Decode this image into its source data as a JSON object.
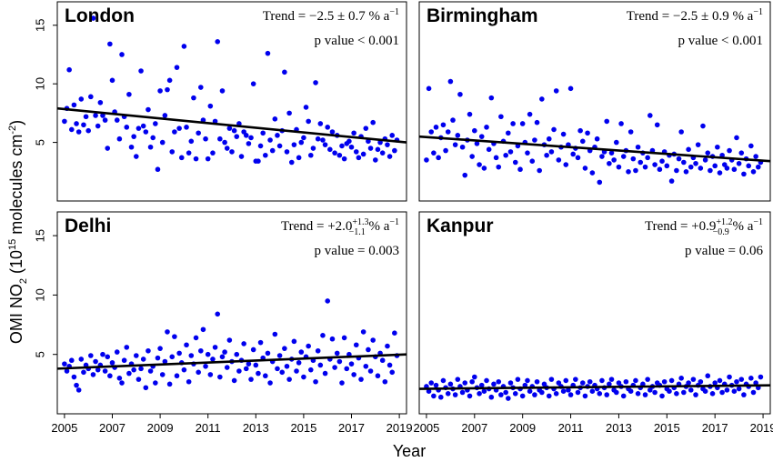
{
  "figure": {
    "xlabel": "Year",
    "ylabel_main": "OMI NO",
    "ylabel_sub": "2",
    "ylabel_open": " (10",
    "ylabel_exp": "15",
    "ylabel_unit": " molecules cm",
    "ylabel_unit_exp": "-2",
    "ylabel_close": ")",
    "x_tick_labels": [
      "2005",
      "2007",
      "2009",
      "2011",
      "2013",
      "2015",
      "2017",
      "2019"
    ],
    "y_tick_labels": [
      "5",
      "10",
      "15"
    ],
    "point_color": "#0000ee",
    "trend_color": "#000000"
  },
  "chart_data": [
    {
      "type": "scatter",
      "title": "London",
      "trend_label": "Trend = ",
      "trend_value": "−2.5 ± 0.7 % a",
      "trend_sup": "−1",
      "trend_sub": "",
      "unit": "",
      "unit_sup": "",
      "pvalue": "p value < 0.001",
      "xlim": [
        2004.7,
        2019.3
      ],
      "ylim": [
        0,
        17
      ],
      "trend": [
        [
          2004.7,
          7.9
        ],
        [
          2019.3,
          5.0
        ]
      ],
      "x": [
        2005.0,
        2005.1,
        2005.2,
        2005.3,
        2005.4,
        2005.5,
        2005.6,
        2005.7,
        2005.8,
        2005.9,
        2006.0,
        2006.1,
        2006.2,
        2006.3,
        2006.4,
        2006.5,
        2006.6,
        2006.7,
        2006.8,
        2006.9,
        2007.0,
        2007.1,
        2007.2,
        2007.3,
        2007.4,
        2007.5,
        2007.6,
        2007.7,
        2007.8,
        2007.9,
        2008.0,
        2008.1,
        2008.2,
        2008.3,
        2008.4,
        2008.5,
        2008.6,
        2008.7,
        2008.8,
        2008.9,
        2009.0,
        2009.1,
        2009.2,
        2009.3,
        2009.4,
        2009.5,
        2009.6,
        2009.7,
        2009.8,
        2009.9,
        2010.0,
        2010.1,
        2010.2,
        2010.3,
        2010.4,
        2010.5,
        2010.6,
        2010.7,
        2010.8,
        2010.9,
        2011.0,
        2011.1,
        2011.2,
        2011.3,
        2011.4,
        2011.5,
        2011.6,
        2011.7,
        2011.8,
        2011.9,
        2012.0,
        2012.1,
        2012.2,
        2012.3,
        2012.4,
        2012.5,
        2012.6,
        2012.7,
        2012.8,
        2012.9,
        2013.0,
        2013.1,
        2013.2,
        2013.3,
        2013.4,
        2013.5,
        2013.6,
        2013.7,
        2013.8,
        2013.9,
        2014.0,
        2014.1,
        2014.2,
        2014.3,
        2014.4,
        2014.5,
        2014.6,
        2014.7,
        2014.8,
        2014.9,
        2015.0,
        2015.1,
        2015.2,
        2015.3,
        2015.4,
        2015.5,
        2015.6,
        2015.7,
        2015.8,
        2015.9,
        2016.0,
        2016.1,
        2016.2,
        2016.3,
        2016.4,
        2016.5,
        2016.6,
        2016.7,
        2016.8,
        2016.9,
        2017.0,
        2017.1,
        2017.2,
        2017.3,
        2017.4,
        2017.5,
        2017.6,
        2017.7,
        2017.8,
        2017.9,
        2018.0,
        2018.1,
        2018.2,
        2018.3,
        2018.4,
        2018.5,
        2018.6,
        2018.7,
        2018.8,
        2018.9
      ],
      "y": [
        6.8,
        7.9,
        11.2,
        6.1,
        8.2,
        6.6,
        5.9,
        8.7,
        6.5,
        7.2,
        6.0,
        8.9,
        15.6,
        7.3,
        6.4,
        8.4,
        7.3,
        6.9,
        4.5,
        13.4,
        10.3,
        7.6,
        6.9,
        5.3,
        12.5,
        7.2,
        6.3,
        9.1,
        4.6,
        5.5,
        3.8,
        6.2,
        11.1,
        6.4,
        5.9,
        7.8,
        4.6,
        5.4,
        6.6,
        2.7,
        9.4,
        5.0,
        7.3,
        9.5,
        10.3,
        4.2,
        5.9,
        11.4,
        6.2,
        3.7,
        13.2,
        6.3,
        4.1,
        5.1,
        8.8,
        3.6,
        5.8,
        9.7,
        6.9,
        5.3,
        3.6,
        8.1,
        4.1,
        6.8,
        13.6,
        5.3,
        9.4,
        5.0,
        4.5,
        6.2,
        4.2,
        6.0,
        5.5,
        6.6,
        3.8,
        5.9,
        5.6,
        4.9,
        5.4,
        10.0,
        3.4,
        3.4,
        4.7,
        5.8,
        3.9,
        12.6,
        5.2,
        4.3,
        7.0,
        5.6,
        4.7,
        6.0,
        11.0,
        4.2,
        7.5,
        3.3,
        4.8,
        6.1,
        3.7,
        5.0,
        5.4,
        8.0,
        6.8,
        3.9,
        4.5,
        10.1,
        5.3,
        6.6,
        5.2,
        4.8,
        6.3,
        4.4,
        5.9,
        4.1,
        5.6,
        3.9,
        4.7,
        3.6,
        4.9,
        5.1,
        4.6,
        5.8,
        4.2,
        3.7,
        5.5,
        4.0,
        6.2,
        5.1,
        4.5,
        6.7,
        3.5,
        4.4,
        5.0,
        4.1,
        5.3,
        4.8,
        3.8,
        5.6,
        4.3,
        5.2
      ]
    },
    {
      "type": "scatter",
      "title": "Birmingham",
      "trend_label": "Trend = ",
      "trend_value": "−2.5 ± 0.9 % a",
      "trend_sup": "−1",
      "trend_sub": "",
      "unit": "",
      "unit_sup": "",
      "pvalue": "p value < 0.001",
      "xlim": [
        2004.7,
        2019.3
      ],
      "ylim": [
        0,
        17
      ],
      "trend": [
        [
          2004.7,
          5.5
        ],
        [
          2019.3,
          3.4
        ]
      ],
      "x": [
        2005.0,
        2005.1,
        2005.2,
        2005.3,
        2005.4,
        2005.5,
        2005.6,
        2005.7,
        2005.8,
        2005.9,
        2006.0,
        2006.1,
        2006.2,
        2006.3,
        2006.4,
        2006.5,
        2006.6,
        2006.7,
        2006.8,
        2006.9,
        2007.0,
        2007.1,
        2007.2,
        2007.3,
        2007.4,
        2007.5,
        2007.6,
        2007.7,
        2007.8,
        2007.9,
        2008.0,
        2008.1,
        2008.2,
        2008.3,
        2008.4,
        2008.5,
        2008.6,
        2008.7,
        2008.8,
        2008.9,
        2009.0,
        2009.1,
        2009.2,
        2009.3,
        2009.4,
        2009.5,
        2009.6,
        2009.7,
        2009.8,
        2009.9,
        2010.0,
        2010.1,
        2010.2,
        2010.3,
        2010.4,
        2010.5,
        2010.6,
        2010.7,
        2010.8,
        2010.9,
        2011.0,
        2011.1,
        2011.2,
        2011.3,
        2011.4,
        2011.5,
        2011.6,
        2011.7,
        2011.8,
        2011.9,
        2012.0,
        2012.1,
        2012.2,
        2012.3,
        2012.4,
        2012.5,
        2012.6,
        2012.7,
        2012.8,
        2012.9,
        2013.0,
        2013.1,
        2013.2,
        2013.3,
        2013.4,
        2013.5,
        2013.6,
        2013.7,
        2013.8,
        2013.9,
        2014.0,
        2014.1,
        2014.2,
        2014.3,
        2014.4,
        2014.5,
        2014.6,
        2014.7,
        2014.8,
        2014.9,
        2015.0,
        2015.1,
        2015.2,
        2015.3,
        2015.4,
        2015.5,
        2015.6,
        2015.7,
        2015.8,
        2015.9,
        2016.0,
        2016.1,
        2016.2,
        2016.3,
        2016.4,
        2016.5,
        2016.6,
        2016.7,
        2016.8,
        2016.9,
        2017.0,
        2017.1,
        2017.2,
        2017.3,
        2017.4,
        2017.5,
        2017.6,
        2017.7,
        2017.8,
        2017.9,
        2018.0,
        2018.1,
        2018.2,
        2018.3,
        2018.4,
        2018.5,
        2018.6,
        2018.7,
        2018.8,
        2018.9
      ],
      "y": [
        3.5,
        9.6,
        5.9,
        4.1,
        6.3,
        3.7,
        5.4,
        6.5,
        4.3,
        5.9,
        10.2,
        6.9,
        4.8,
        5.6,
        9.1,
        4.6,
        2.2,
        5.2,
        7.4,
        3.8,
        6.0,
        4.9,
        3.1,
        5.5,
        2.8,
        6.3,
        4.4,
        8.8,
        4.9,
        3.7,
        2.9,
        7.2,
        5.1,
        3.9,
        5.8,
        4.2,
        6.6,
        3.3,
        4.7,
        2.7,
        6.6,
        5.0,
        4.1,
        7.4,
        3.4,
        5.2,
        6.7,
        2.6,
        8.7,
        4.8,
        3.9,
        5.3,
        4.2,
        6.1,
        9.4,
        3.5,
        4.6,
        5.7,
        3.1,
        4.8,
        9.6,
        4.0,
        4.5,
        3.7,
        6.0,
        5.1,
        2.8,
        5.8,
        4.3,
        2.4,
        4.6,
        5.3,
        1.6,
        3.8,
        4.2,
        6.8,
        3.2,
        4.1,
        3.5,
        5.0,
        2.9,
        6.6,
        3.8,
        4.3,
        2.5,
        5.9,
        3.6,
        2.6,
        4.6,
        3.3,
        4.1,
        2.9,
        3.7,
        7.3,
        4.3,
        3.1,
        6.5,
        2.7,
        3.4,
        4.2,
        3.0,
        3.9,
        1.7,
        4.0,
        2.6,
        3.6,
        5.9,
        3.3,
        2.5,
        4.4,
        2.9,
        3.7,
        3.2,
        4.8,
        2.8,
        6.4,
        3.5,
        4.1,
        2.6,
        3.8,
        3.0,
        4.6,
        2.4,
        3.9,
        3.1,
        2.8,
        4.3,
        3.5,
        2.7,
        5.4,
        3.2,
        4.1,
        2.3,
        3.6,
        3.0,
        4.7,
        2.5,
        3.8,
        2.9,
        3.3
      ]
    },
    {
      "type": "scatter",
      "title": "Delhi",
      "trend_label": "Trend = ",
      "trend_value": "+2.0",
      "trend_sup": "+1.3",
      "trend_sub": "−1.1",
      "unit": " % a",
      "unit_sup": "−1",
      "pvalue": "p value = 0.003",
      "xlim": [
        2004.7,
        2019.3
      ],
      "ylim": [
        0,
        17
      ],
      "trend": [
        [
          2004.7,
          3.8
        ],
        [
          2019.3,
          5.0
        ]
      ],
      "x": [
        2005.0,
        2005.1,
        2005.2,
        2005.3,
        2005.4,
        2005.5,
        2005.6,
        2005.7,
        2005.8,
        2005.9,
        2006.0,
        2006.1,
        2006.2,
        2006.3,
        2006.4,
        2006.5,
        2006.6,
        2006.7,
        2006.8,
        2006.9,
        2007.0,
        2007.1,
        2007.2,
        2007.3,
        2007.4,
        2007.5,
        2007.6,
        2007.7,
        2007.8,
        2007.9,
        2008.0,
        2008.1,
        2008.2,
        2008.3,
        2008.4,
        2008.5,
        2008.6,
        2008.7,
        2008.8,
        2008.9,
        2009.0,
        2009.1,
        2009.2,
        2009.3,
        2009.4,
        2009.5,
        2009.6,
        2009.7,
        2009.8,
        2009.9,
        2010.0,
        2010.1,
        2010.2,
        2010.3,
        2010.4,
        2010.5,
        2010.6,
        2010.7,
        2010.8,
        2010.9,
        2011.0,
        2011.1,
        2011.2,
        2011.3,
        2011.4,
        2011.5,
        2011.6,
        2011.7,
        2011.8,
        2011.9,
        2012.0,
        2012.1,
        2012.2,
        2012.3,
        2012.4,
        2012.5,
        2012.6,
        2012.7,
        2012.8,
        2012.9,
        2013.0,
        2013.1,
        2013.2,
        2013.3,
        2013.4,
        2013.5,
        2013.6,
        2013.7,
        2013.8,
        2013.9,
        2014.0,
        2014.1,
        2014.2,
        2014.3,
        2014.4,
        2014.5,
        2014.6,
        2014.7,
        2014.8,
        2014.9,
        2015.0,
        2015.1,
        2015.2,
        2015.3,
        2015.4,
        2015.5,
        2015.6,
        2015.7,
        2015.8,
        2015.9,
        2016.0,
        2016.1,
        2016.2,
        2016.3,
        2016.4,
        2016.5,
        2016.6,
        2016.7,
        2016.8,
        2016.9,
        2017.0,
        2017.1,
        2017.2,
        2017.3,
        2017.4,
        2017.5,
        2017.6,
        2017.7,
        2017.8,
        2017.9,
        2018.0,
        2018.1,
        2018.2,
        2018.3,
        2018.4,
        2018.5,
        2018.6,
        2018.7,
        2018.8,
        2018.9
      ],
      "y": [
        4.2,
        3.6,
        4.0,
        4.5,
        3.1,
        2.4,
        2.0,
        4.6,
        3.5,
        4.1,
        3.8,
        4.9,
        3.3,
        4.4,
        3.7,
        4.1,
        5.0,
        3.6,
        4.8,
        3.2,
        4.3,
        3.9,
        5.2,
        3.0,
        2.6,
        4.5,
        5.6,
        3.4,
        4.2,
        3.7,
        4.9,
        2.9,
        3.8,
        4.6,
        2.2,
        5.3,
        3.6,
        4.0,
        2.6,
        4.7,
        5.5,
        3.3,
        4.4,
        6.9,
        2.5,
        4.8,
        6.5,
        3.2,
        5.1,
        4.3,
        3.7,
        5.8,
        2.7,
        4.9,
        4.2,
        6.4,
        3.5,
        5.3,
        7.1,
        4.0,
        5.0,
        3.3,
        4.6,
        5.6,
        8.4,
        3.1,
        4.8,
        5.2,
        3.9,
        6.2,
        4.4,
        2.8,
        5.0,
        3.6,
        4.5,
        5.9,
        3.8,
        4.2,
        2.9,
        5.4,
        4.1,
        3.4,
        6.0,
        4.7,
        3.2,
        5.1,
        2.6,
        4.4,
        6.7,
        3.8,
        4.9,
        3.5,
        5.5,
        4.0,
        2.9,
        4.6,
        6.1,
        3.6,
        4.3,
        5.2,
        3.1,
        4.8,
        5.7,
        3.7,
        4.5,
        2.7,
        5.3,
        4.1,
        6.6,
        3.4,
        9.5,
        4.6,
        6.3,
        3.9,
        5.1,
        4.4,
        2.6,
        6.4,
        3.8,
        5.0,
        4.2,
        3.3,
        5.8,
        4.7,
        2.9,
        6.9,
        4.0,
        5.4,
        3.6,
        6.2,
        4.8,
        3.2,
        5.1,
        4.5,
        2.7,
        5.7,
        4.1,
        3.5,
        6.8,
        4.9
      ]
    },
    {
      "type": "scatter",
      "title": "Kanpur",
      "trend_label": "Trend = ",
      "trend_value": "+0.9",
      "trend_sup": "+1.2",
      "trend_sub": "−0.9",
      "unit": " % a",
      "unit_sup": "−1",
      "pvalue": "p value = 0.06",
      "xlim": [
        2004.7,
        2019.3
      ],
      "ylim": [
        0,
        17
      ],
      "trend": [
        [
          2004.7,
          2.1
        ],
        [
          2019.3,
          2.4
        ]
      ],
      "x": [
        2005.0,
        2005.1,
        2005.2,
        2005.3,
        2005.4,
        2005.5,
        2005.6,
        2005.7,
        2005.8,
        2005.9,
        2006.0,
        2006.1,
        2006.2,
        2006.3,
        2006.4,
        2006.5,
        2006.6,
        2006.7,
        2006.8,
        2006.9,
        2007.0,
        2007.1,
        2007.2,
        2007.3,
        2007.4,
        2007.5,
        2007.6,
        2007.7,
        2007.8,
        2007.9,
        2008.0,
        2008.1,
        2008.2,
        2008.3,
        2008.4,
        2008.5,
        2008.6,
        2008.7,
        2008.8,
        2008.9,
        2009.0,
        2009.1,
        2009.2,
        2009.3,
        2009.4,
        2009.5,
        2009.6,
        2009.7,
        2009.8,
        2009.9,
        2010.0,
        2010.1,
        2010.2,
        2010.3,
        2010.4,
        2010.5,
        2010.6,
        2010.7,
        2010.8,
        2010.9,
        2011.0,
        2011.1,
        2011.2,
        2011.3,
        2011.4,
        2011.5,
        2011.6,
        2011.7,
        2011.8,
        2011.9,
        2012.0,
        2012.1,
        2012.2,
        2012.3,
        2012.4,
        2012.5,
        2012.6,
        2012.7,
        2012.8,
        2012.9,
        2013.0,
        2013.1,
        2013.2,
        2013.3,
        2013.4,
        2013.5,
        2013.6,
        2013.7,
        2013.8,
        2013.9,
        2014.0,
        2014.1,
        2014.2,
        2014.3,
        2014.4,
        2014.5,
        2014.6,
        2014.7,
        2014.8,
        2014.9,
        2015.0,
        2015.1,
        2015.2,
        2015.3,
        2015.4,
        2015.5,
        2015.6,
        2015.7,
        2015.8,
        2015.9,
        2016.0,
        2016.1,
        2016.2,
        2016.3,
        2016.4,
        2016.5,
        2016.6,
        2016.7,
        2016.8,
        2016.9,
        2017.0,
        2017.1,
        2017.2,
        2017.3,
        2017.4,
        2017.5,
        2017.6,
        2017.7,
        2017.8,
        2017.9,
        2018.0,
        2018.1,
        2018.2,
        2018.3,
        2018.4,
        2018.5,
        2018.6,
        2018.7,
        2018.8,
        2018.9
      ],
      "y": [
        2.3,
        1.9,
        2.6,
        1.5,
        2.4,
        2.0,
        1.4,
        2.8,
        2.2,
        1.7,
        2.5,
        2.1,
        1.6,
        2.9,
        2.3,
        1.8,
        2.6,
        2.0,
        1.5,
        2.7,
        3.1,
        2.2,
        1.7,
        2.4,
        1.9,
        2.8,
        2.1,
        1.4,
        2.5,
        2.0,
        2.7,
        1.6,
        2.3,
        1.8,
        1.3,
        2.6,
        2.2,
        1.7,
        2.9,
        2.1,
        1.5,
        2.4,
        2.8,
        1.9,
        2.3,
        1.6,
        2.7,
        2.0,
        1.8,
        2.5,
        2.2,
        1.5,
        2.9,
        2.1,
        1.7,
        2.6,
        2.3,
        1.9,
        2.8,
        2.0,
        1.6,
        2.4,
        2.9,
        1.8,
        2.2,
        2.6,
        1.5,
        2.3,
        2.7,
        1.9,
        2.4,
        2.1,
        1.7,
        2.8,
        2.2,
        1.6,
        2.5,
        2.9,
        2.0,
        1.8,
        2.6,
        2.3,
        1.5,
        2.7,
        2.1,
        1.9,
        2.4,
        2.8,
        1.7,
        2.2,
        2.5,
        1.6,
        2.9,
        2.0,
        2.3,
        1.8,
        2.6,
        2.4,
        1.5,
        2.7,
        2.1,
        1.9,
        2.8,
        2.2,
        1.7,
        2.5,
        3.0,
        1.8,
        2.3,
        2.6,
        2.0,
        2.9,
        1.6,
        2.4,
        2.7,
        2.1,
        1.9,
        3.2,
        2.3,
        1.7,
        2.6,
        2.2,
        2.8,
        1.8,
        2.5,
        2.0,
        3.1,
        2.4,
        1.9,
        2.7,
        2.1,
        2.9,
        1.6,
        2.5,
        2.3,
        3.0,
        1.8,
        2.6,
        2.2,
        3.1
      ]
    }
  ]
}
